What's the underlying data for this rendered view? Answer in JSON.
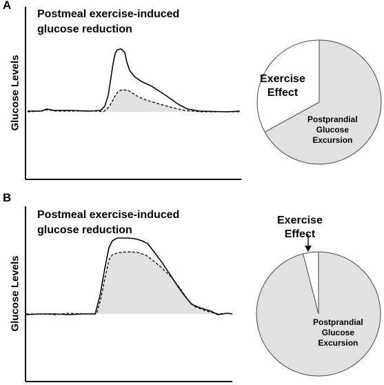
{
  "panels": [
    {
      "letter": "A",
      "title_line1": "Postmeal exercise-induced",
      "title_line2": "glucose reduction",
      "y_axis_label": "Glucose Levels",
      "pie": {
        "exercise_label_line1": "Exercise",
        "exercise_label_line2": "Effect",
        "excursion_label_line1": "Postprandial",
        "excursion_label_line2": "Glucose",
        "excursion_label_line3": "Excursion",
        "exercise_fraction": 0.33
      }
    },
    {
      "letter": "B",
      "title_line1": "Postmeal exercise-induced",
      "title_line2": "glucose reduction",
      "y_axis_label": "Glucose Levels",
      "pie": {
        "exercise_label_line1": "Exercise",
        "exercise_label_line2": "Effect",
        "excursion_label_line1": "Postprandial",
        "excursion_label_line2": "Glucose",
        "excursion_label_line3": "Excursion",
        "exercise_fraction": 0.04
      }
    }
  ],
  "colors": {
    "shade": "#e1e1e1",
    "line": "#000000",
    "background": "#ffffff"
  }
}
